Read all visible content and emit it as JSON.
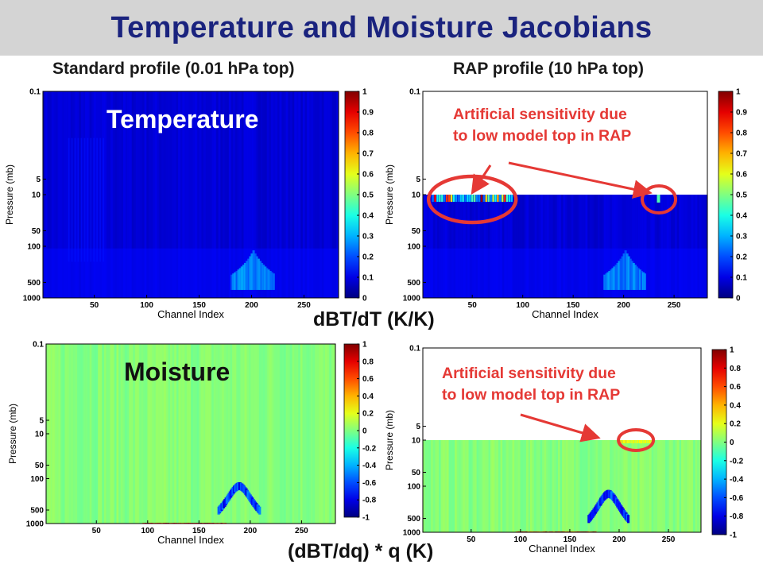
{
  "slide": {
    "title": "Temperature and Moisture Jacobians",
    "left_column_heading": "Standard profile (0.01 hPa top)",
    "right_column_heading": "RAP profile (10 hPa top)",
    "temperature_units": "dBT/dT (K/K)",
    "moisture_units": "(dBT/dq) * q (K)",
    "colors": {
      "title": "#1a237e",
      "title_bar": "#d4d4d4",
      "annotation": "#e53935"
    }
  },
  "chart_data": [
    {
      "id": "temp-standard",
      "type": "heatmap",
      "overlay_label": "Temperature",
      "xlabel": "Channel Index",
      "ylabel": "Pressure (mb)",
      "xticks": [
        50,
        100,
        150,
        200,
        250
      ],
      "yticks": [
        "0.1",
        "5",
        "10",
        "50",
        "100",
        "500",
        "1000"
      ],
      "ytick_values": [
        0.1,
        5,
        10,
        50,
        100,
        500,
        1000
      ],
      "y_scale": "log",
      "xlim": [
        1,
        283
      ],
      "ylim": [
        0.1,
        1000
      ],
      "colorbar_ticks": [
        "1",
        "0.9",
        "0.8",
        "0.7",
        "0.6",
        "0.5",
        "0.4",
        "0.3",
        "0.2",
        "0.1",
        "0"
      ],
      "colorscale": "jet",
      "clim": [
        0,
        1
      ],
      "model_top_hpa": 0.01
    },
    {
      "id": "temp-rap",
      "type": "heatmap",
      "xlabel": "Channel Index",
      "ylabel": "Pressure (mb)",
      "xticks": [
        50,
        100,
        150,
        200,
        250
      ],
      "yticks": [
        "0.1",
        "5",
        "10",
        "50",
        "100",
        "500",
        "1000"
      ],
      "ytick_values": [
        0.1,
        5,
        10,
        50,
        100,
        500,
        1000
      ],
      "y_scale": "log",
      "xlim": [
        1,
        283
      ],
      "ylim": [
        0.1,
        1000
      ],
      "colorbar_ticks": [
        "1",
        "0.9",
        "0.8",
        "0.7",
        "0.6",
        "0.5",
        "0.4",
        "0.3",
        "0.2",
        "0.1",
        "0"
      ],
      "colorscale": "jet",
      "clim": [
        0,
        1
      ],
      "model_top_hpa": 10,
      "annotation": "Artificial sensitivity due to low model top in RAP",
      "annotation_lines": [
        "Artificial sensitivity due",
        "to low model top in RAP"
      ],
      "highlight_channels": [
        [
          10,
          90
        ],
        [
          225,
          245
        ]
      ]
    },
    {
      "id": "moist-standard",
      "type": "heatmap",
      "overlay_label": "Moisture",
      "xlabel": "Channel Index",
      "ylabel": "Pressure (mb)",
      "xticks": [
        50,
        100,
        150,
        200,
        250
      ],
      "yticks": [
        "0.1",
        "5",
        "10",
        "50",
        "100",
        "500",
        "1000"
      ],
      "ytick_values": [
        0.1,
        5,
        10,
        50,
        100,
        500,
        1000
      ],
      "y_scale": "log",
      "xlim": [
        1,
        283
      ],
      "ylim": [
        0.1,
        1000
      ],
      "colorbar_ticks": [
        "1",
        "0.8",
        "0.6",
        "0.4",
        "0.2",
        "0",
        "-0.2",
        "-0.4",
        "-0.6",
        "-0.8",
        "-1"
      ],
      "colorscale": "jet",
      "clim": [
        -1,
        1
      ],
      "model_top_hpa": 0.01
    },
    {
      "id": "moist-rap",
      "type": "heatmap",
      "xlabel": "Channel Index",
      "ylabel": "Pressure (mb)",
      "xticks": [
        50,
        100,
        150,
        200,
        250
      ],
      "yticks": [
        "0.1",
        "5",
        "10",
        "50",
        "100",
        "500",
        "1000"
      ],
      "ytick_values": [
        0.1,
        5,
        10,
        50,
        100,
        500,
        1000
      ],
      "y_scale": "log",
      "xlim": [
        1,
        283
      ],
      "ylim": [
        0.1,
        1000
      ],
      "colorbar_ticks": [
        "1",
        "0.8",
        "0.6",
        "0.4",
        "0.2",
        "0",
        "-0.2",
        "-0.4",
        "-0.6",
        "-0.8",
        "-1"
      ],
      "colorscale": "jet",
      "clim": [
        -1,
        1
      ],
      "model_top_hpa": 10,
      "annotation": "Artificial sensitivity due to low model top in RAP",
      "annotation_lines": [
        "Artificial sensitivity due",
        "to low model top in RAP"
      ],
      "highlight_channels": [
        [
          200,
          235
        ]
      ]
    }
  ]
}
